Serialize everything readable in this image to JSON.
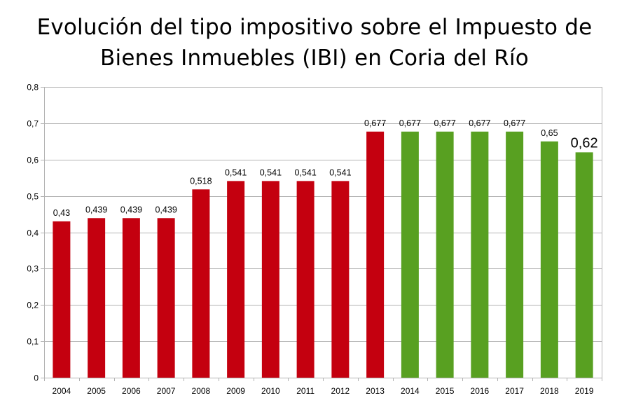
{
  "chart_data": {
    "type": "bar",
    "title_lines": [
      "Evolución del tipo impositivo sobre el Impuesto de",
      "Bienes Inmuebles (IBI) en Coria del Río"
    ],
    "xlabel": "",
    "ylabel": "",
    "ylim": [
      0,
      0.8
    ],
    "yticks": [
      "0",
      "0,1",
      "0,2",
      "0,3",
      "0,4",
      "0,5",
      "0,6",
      "0,7",
      "0,8"
    ],
    "grid": true,
    "legend": "none",
    "categories": [
      "2004",
      "2005",
      "2006",
      "2007",
      "2008",
      "2009",
      "2010",
      "2011",
      "2012",
      "2013",
      "2014",
      "2015",
      "2016",
      "2017",
      "2018",
      "2019"
    ],
    "values": [
      0.43,
      0.439,
      0.439,
      0.439,
      0.518,
      0.541,
      0.541,
      0.541,
      0.541,
      0.677,
      0.677,
      0.677,
      0.677,
      0.677,
      0.65,
      0.62
    ],
    "value_labels": [
      "0,43",
      "0,439",
      "0,439",
      "0,439",
      "0,518",
      "0,541",
      "0,541",
      "0,541",
      "0,541",
      "0,677",
      "0,677",
      "0,677",
      "0,677",
      "0,677",
      "0,65",
      "0,62"
    ],
    "colors": {
      "red": "#c4000f",
      "green": "#58a021",
      "bar_colors": [
        "red",
        "red",
        "red",
        "red",
        "red",
        "red",
        "red",
        "red",
        "red",
        "red",
        "green",
        "green",
        "green",
        "green",
        "green",
        "green"
      ]
    }
  }
}
